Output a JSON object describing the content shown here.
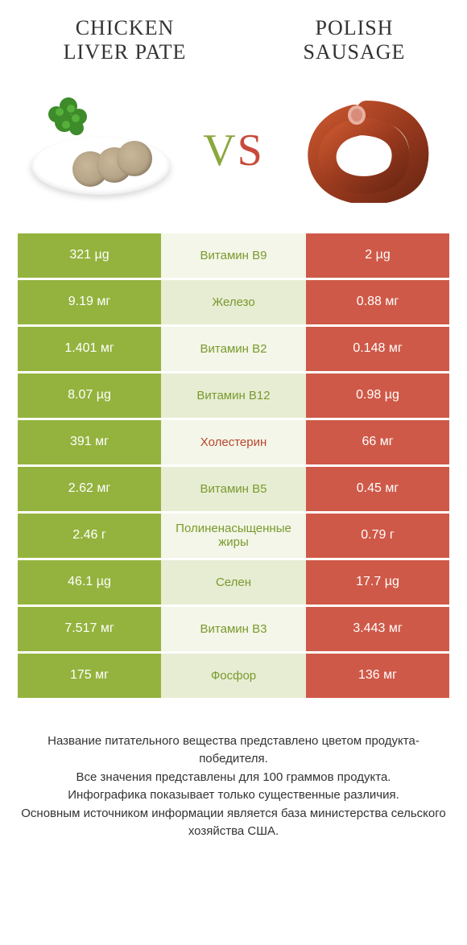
{
  "titles": {
    "left_line1": "CHICKEN",
    "left_line2": "LIVER PATE",
    "right_line1": "POLISH",
    "right_line2": "SAUSAGE"
  },
  "vs": {
    "v": "V",
    "s": "S"
  },
  "colors": {
    "left_bg": "#94b33e",
    "right_bg": "#cf5948",
    "mid_bg_a": "#f3f6e8",
    "mid_bg_b": "#e7edd3",
    "mid_text_left": "#7a9a2e",
    "mid_text_right": "#b9442f"
  },
  "rows": [
    {
      "left": "321 µg",
      "mid": "Витамин B9",
      "right": "2 µg",
      "winner": "left"
    },
    {
      "left": "9.19 мг",
      "mid": "Железо",
      "right": "0.88 мг",
      "winner": "left"
    },
    {
      "left": "1.401 мг",
      "mid": "Витамин B2",
      "right": "0.148 мг",
      "winner": "left"
    },
    {
      "left": "8.07 µg",
      "mid": "Витамин B12",
      "right": "0.98 µg",
      "winner": "left"
    },
    {
      "left": "391 мг",
      "mid": "Холестерин",
      "right": "66 мг",
      "winner": "right"
    },
    {
      "left": "2.62 мг",
      "mid": "Витамин B5",
      "right": "0.45 мг",
      "winner": "left"
    },
    {
      "left": "2.46 г",
      "mid": "Полиненасыщенные жиры",
      "right": "0.79 г",
      "winner": "left"
    },
    {
      "left": "46.1 µg",
      "mid": "Селен",
      "right": "17.7 µg",
      "winner": "left"
    },
    {
      "left": "7.517 мг",
      "mid": "Витамин B3",
      "right": "3.443 мг",
      "winner": "left"
    },
    {
      "left": "175 мг",
      "mid": "Фосфор",
      "right": "136 мг",
      "winner": "left"
    }
  ],
  "footer": {
    "l1": "Название питательного вещества представлено цветом продукта-победителя.",
    "l2": "Все значения представлены для 100 граммов продукта.",
    "l3": "Инфографика показывает только существенные различия.",
    "l4": "Основным источником информации является база министерства сельского хозяйства США."
  }
}
